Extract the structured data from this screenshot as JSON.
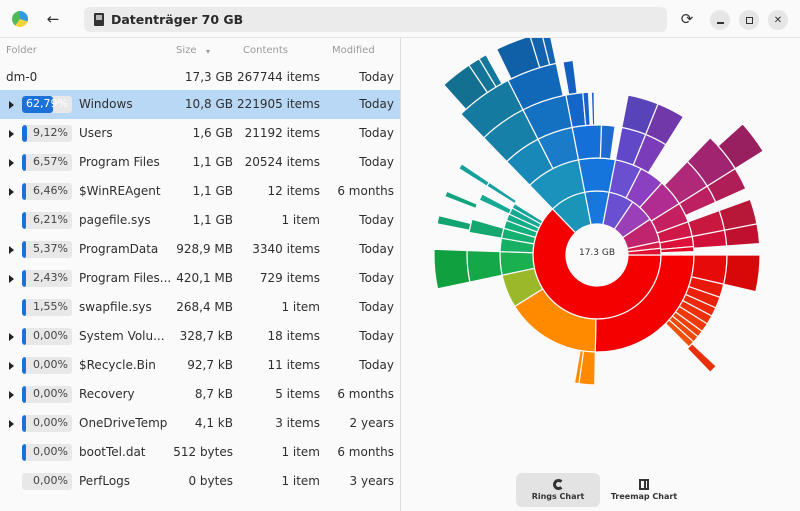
{
  "window": {
    "location": "Datenträger 70 GB",
    "buttons": {
      "back": "←",
      "reload": "⟳"
    }
  },
  "table": {
    "headers": {
      "folder": "Folder",
      "size": "Size",
      "size_sort": "▾",
      "contents": "Contents",
      "modified": "Modified"
    },
    "root": {
      "name": "dm-0",
      "size": "17,3 GB",
      "contents": "267744 items",
      "modified": "Today"
    },
    "rows": [
      {
        "pct": "62,79%",
        "fill": 62.79,
        "name": "Windows",
        "size": "10,8 GB",
        "contents": "221905 items",
        "modified": "Today",
        "expandable": true,
        "selected": true
      },
      {
        "pct": "9,12%",
        "fill": 9.12,
        "name": "Users",
        "size": "1,6 GB",
        "contents": "21192 items",
        "modified": "Today",
        "expandable": true
      },
      {
        "pct": "6,57%",
        "fill": 6.57,
        "name": "Program Files",
        "size": "1,1 GB",
        "contents": "20524 items",
        "modified": "Today",
        "expandable": true
      },
      {
        "pct": "6,46%",
        "fill": 6.46,
        "name": "$WinREAgent",
        "size": "1,1 GB",
        "contents": "12 items",
        "modified": "6 months",
        "expandable": true
      },
      {
        "pct": "6,21%",
        "fill": 6.21,
        "name": "pagefile.sys",
        "size": "1,1 GB",
        "contents": "1 item",
        "modified": "Today",
        "expandable": false
      },
      {
        "pct": "5,37%",
        "fill": 5.37,
        "name": "ProgramData",
        "size": "928,9 MB",
        "contents": "3340 items",
        "modified": "Today",
        "expandable": true
      },
      {
        "pct": "2,43%",
        "fill": 2.43,
        "name": "Program Files...",
        "size": "420,1 MB",
        "contents": "729 items",
        "modified": "Today",
        "expandable": true
      },
      {
        "pct": "1,55%",
        "fill": 1.55,
        "name": "swapfile.sys",
        "size": "268,4 MB",
        "contents": "1 item",
        "modified": "Today",
        "expandable": false
      },
      {
        "pct": "0,00%",
        "fill": 0.4,
        "name": "System Volu...",
        "size": "328,7 kB",
        "contents": "18 items",
        "modified": "Today",
        "expandable": true
      },
      {
        "pct": "0,00%",
        "fill": 0.4,
        "name": "$Recycle.Bin",
        "size": "92,7 kB",
        "contents": "11 items",
        "modified": "Today",
        "expandable": true
      },
      {
        "pct": "0,00%",
        "fill": 0.4,
        "name": "Recovery",
        "size": "8,7 kB",
        "contents": "5 items",
        "modified": "6 months",
        "expandable": true
      },
      {
        "pct": "0,00%",
        "fill": 0.4,
        "name": "OneDriveTemp",
        "size": "4,1 kB",
        "contents": "3 items",
        "modified": "2 years",
        "expandable": true
      },
      {
        "pct": "0,00%",
        "fill": 0.4,
        "name": "bootTel.dat",
        "size": "512 bytes",
        "contents": "1 item",
        "modified": "6 months",
        "expandable": false
      },
      {
        "pct": "0,00%",
        "fill": 0,
        "name": "PerfLogs",
        "size": "0 bytes",
        "contents": "1 item",
        "modified": "3 years",
        "expandable": false
      }
    ]
  },
  "chart": {
    "center_label": "17.3 GB",
    "accent": "#1c71d8",
    "view_buttons": {
      "rings": "Rings Chart",
      "treemap": "Treemap Chart",
      "active": "rings"
    }
  },
  "chart_data": {
    "type": "sunburst",
    "title": "17.3 GB",
    "center": [
      196,
      217
    ],
    "inner_radius": 31,
    "ring_width": 33,
    "segments": [
      {
        "level": 1,
        "start": 90,
        "end": 316,
        "color": "#f50000",
        "label": "Windows"
      },
      {
        "level": 1,
        "start": 316,
        "end": 349,
        "color": "#1a95b8"
      },
      {
        "level": 1,
        "start": 349,
        "end": 11,
        "color": "#1777dc"
      },
      {
        "level": 1,
        "start": 11,
        "end": 34,
        "color": "#6a4fd0"
      },
      {
        "level": 1,
        "start": 34,
        "end": 56,
        "color": "#9a3fb8"
      },
      {
        "level": 1,
        "start": 56,
        "end": 78,
        "color": "#c0246e"
      },
      {
        "level": 1,
        "start": 78,
        "end": 84,
        "color": "#d81a4a"
      },
      {
        "level": 1,
        "start": 84,
        "end": 90,
        "color": "#e01030"
      },
      {
        "level": 2,
        "start": 90,
        "end": 181,
        "color": "#f50000"
      },
      {
        "level": 2,
        "start": 181,
        "end": 238,
        "color": "#ff8a00"
      },
      {
        "level": 2,
        "start": 238,
        "end": 258,
        "color": "#9ab82a"
      },
      {
        "level": 2,
        "start": 258,
        "end": 272,
        "color": "#1ab050"
      },
      {
        "level": 2,
        "start": 272,
        "end": 280,
        "color": "#18b064"
      },
      {
        "level": 2,
        "start": 280,
        "end": 286,
        "color": "#14b072"
      },
      {
        "level": 2,
        "start": 286,
        "end": 291,
        "color": "#12b07c"
      },
      {
        "level": 2,
        "start": 291,
        "end": 295,
        "color": "#14ac88"
      },
      {
        "level": 2,
        "start": 295,
        "end": 299,
        "color": "#16a892"
      },
      {
        "level": 2,
        "start": 299,
        "end": 302,
        "color": "#18a49c"
      },
      {
        "level": 2,
        "start": 316,
        "end": 349,
        "color": "#1a92bc"
      },
      {
        "level": 2,
        "start": 349,
        "end": 11,
        "color": "#1675dc"
      },
      {
        "level": 2,
        "start": 11,
        "end": 27,
        "color": "#6a50d0"
      },
      {
        "level": 2,
        "start": 27,
        "end": 42,
        "color": "#8a40c0"
      },
      {
        "level": 2,
        "start": 42,
        "end": 58,
        "color": "#b02c90"
      },
      {
        "level": 2,
        "start": 58,
        "end": 70,
        "color": "#c42060"
      },
      {
        "level": 2,
        "start": 70,
        "end": 79,
        "color": "#d01848"
      },
      {
        "level": 2,
        "start": 79,
        "end": 85,
        "color": "#dc1038"
      },
      {
        "level": 2,
        "start": 85,
        "end": 88,
        "color": "#e40828"
      },
      {
        "level": 3,
        "start": 90,
        "end": 103,
        "color": "#e60a0a"
      },
      {
        "level": 3,
        "start": 103,
        "end": 109,
        "color": "#e81808"
      },
      {
        "level": 3,
        "start": 109,
        "end": 114,
        "color": "#ea2008"
      },
      {
        "level": 3,
        "start": 114,
        "end": 118,
        "color": "#ec2808"
      },
      {
        "level": 3,
        "start": 118,
        "end": 122,
        "color": "#ee3008"
      },
      {
        "level": 3,
        "start": 122,
        "end": 126,
        "color": "#ef3808"
      },
      {
        "level": 3,
        "start": 126,
        "end": 129,
        "color": "#f04008"
      },
      {
        "level": 3,
        "start": 129,
        "end": 132,
        "color": "#f04808"
      },
      {
        "level": 3,
        "start": 132,
        "end": 135,
        "color": "#f05008"
      },
      {
        "level": 3,
        "start": 181,
        "end": 188,
        "color": "#ff8a00"
      },
      {
        "level": 3,
        "start": 188,
        "end": 190,
        "color": "#ff8c08"
      },
      {
        "level": 3,
        "start": 258,
        "end": 272,
        "color": "#14a848"
      },
      {
        "level": 3,
        "start": 280,
        "end": 286,
        "color": "#14a870"
      },
      {
        "level": 3,
        "start": 295,
        "end": 298,
        "color": "#16a892"
      },
      {
        "level": 3,
        "start": 302,
        "end": 304,
        "color": "#18a0a0"
      },
      {
        "level": 3,
        "start": 316,
        "end": 333,
        "color": "#1888b8"
      },
      {
        "level": 3,
        "start": 333,
        "end": 349,
        "color": "#1a7cc8"
      },
      {
        "level": 3,
        "start": 349,
        "end": 2,
        "color": "#1470d8"
      },
      {
        "level": 3,
        "start": 2,
        "end": 8,
        "color": "#1e6ad0"
      },
      {
        "level": 3,
        "start": 11,
        "end": 22,
        "color": "#6048c8"
      },
      {
        "level": 3,
        "start": 22,
        "end": 32,
        "color": "#7a3cb8"
      },
      {
        "level": 3,
        "start": 44,
        "end": 58,
        "color": "#b02878"
      },
      {
        "level": 3,
        "start": 58,
        "end": 66,
        "color": "#bc2060"
      },
      {
        "level": 3,
        "start": 70,
        "end": 79,
        "color": "#c81840"
      },
      {
        "level": 3,
        "start": 79,
        "end": 86,
        "color": "#d01038"
      },
      {
        "level": 4,
        "start": 90,
        "end": 103,
        "color": "#d80808"
      },
      {
        "level": 4,
        "start": 133,
        "end": 136,
        "color": "#e83008"
      },
      {
        "level": 4,
        "start": 258,
        "end": 272,
        "color": "#10a040"
      },
      {
        "level": 4,
        "start": 281,
        "end": 284,
        "color": "#10a470"
      },
      {
        "level": 4,
        "start": 291,
        "end": 293,
        "color": "#12a47c"
      },
      {
        "level": 4,
        "start": 302,
        "end": 304,
        "color": "#16a09a"
      },
      {
        "level": 4,
        "start": 316,
        "end": 333,
        "color": "#1680a8"
      },
      {
        "level": 4,
        "start": 333,
        "end": 349,
        "color": "#1470c0"
      },
      {
        "level": 4,
        "start": 349,
        "end": 355,
        "color": "#1466c8"
      },
      {
        "level": 4,
        "start": 355,
        "end": 357,
        "color": "#1862c8"
      },
      {
        "level": 4,
        "start": 358,
        "end": 359,
        "color": "#1a60c8"
      },
      {
        "level": 4,
        "start": 11,
        "end": 22,
        "color": "#5844b8"
      },
      {
        "level": 4,
        "start": 22,
        "end": 32,
        "color": "#7038a8"
      },
      {
        "level": 4,
        "start": 44,
        "end": 58,
        "color": "#a02470"
      },
      {
        "level": 4,
        "start": 58,
        "end": 66,
        "color": "#b01e58"
      },
      {
        "level": 4,
        "start": 70,
        "end": 79,
        "color": "#b81838"
      },
      {
        "level": 4,
        "start": 79,
        "end": 86,
        "color": "#c01030"
      },
      {
        "level": 5,
        "start": 316,
        "end": 333,
        "color": "#157aa0"
      },
      {
        "level": 5,
        "start": 333,
        "end": 348,
        "color": "#1268b8"
      },
      {
        "level": 5,
        "start": 350,
        "end": 353,
        "color": "#1460c0"
      },
      {
        "level": 5,
        "start": 48,
        "end": 58,
        "color": "#982060"
      },
      {
        "level": 6,
        "start": 318,
        "end": 326,
        "color": "#147090"
      },
      {
        "level": 6,
        "start": 326,
        "end": 329,
        "color": "#137498"
      },
      {
        "level": 6,
        "start": 329,
        "end": 331,
        "color": "#12789c"
      },
      {
        "level": 6,
        "start": 334,
        "end": 343,
        "color": "#1060a8"
      },
      {
        "level": 6,
        "start": 343,
        "end": 346,
        "color": "#1262ae"
      },
      {
        "level": 6,
        "start": 346,
        "end": 348,
        "color": "#1464b4"
      }
    ]
  }
}
